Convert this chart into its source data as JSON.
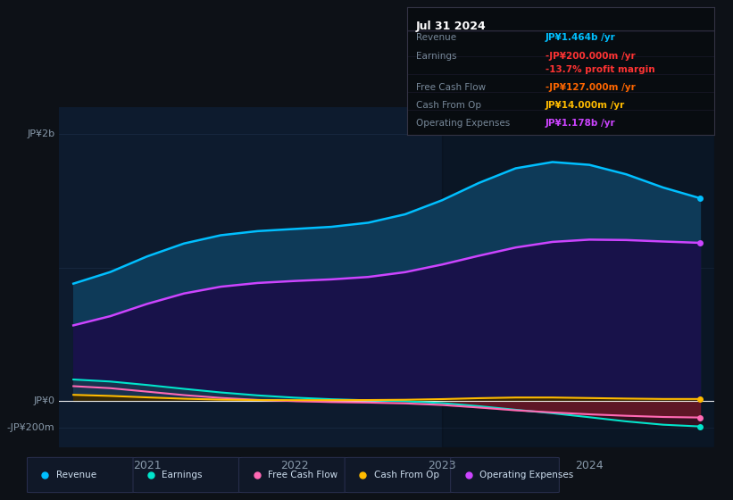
{
  "bg_color": "#0d1117",
  "plot_bg_color": "#0d1b2e",
  "grid_color": "#1a2d45",
  "axis_label_color": "#8899aa",
  "info_box": {
    "title": "Jul 31 2024",
    "title_color": "#ffffff",
    "bg_color": "#080c10",
    "border_color": "#333344",
    "rows": [
      {
        "label": "Revenue",
        "value": "JP¥1.464b /yr",
        "label_color": "#778899",
        "value_color": "#00bfff"
      },
      {
        "label": "Earnings",
        "value": "-JP¥200.000m /yr",
        "label_color": "#778899",
        "value_color": "#ff3333"
      },
      {
        "label": "",
        "value": "-13.7% profit margin",
        "label_color": "",
        "value_color": "#ff3333"
      },
      {
        "label": "Free Cash Flow",
        "value": "-JP¥127.000m /yr",
        "label_color": "#778899",
        "value_color": "#ff6600"
      },
      {
        "label": "Cash From Op",
        "value": "JP¥14.000m /yr",
        "label_color": "#778899",
        "value_color": "#ffbb00"
      },
      {
        "label": "Operating Expenses",
        "value": "JP¥1.178b /yr",
        "label_color": "#778899",
        "value_color": "#cc44ff"
      }
    ]
  },
  "legend": [
    {
      "label": "Revenue",
      "color": "#00bfff"
    },
    {
      "label": "Earnings",
      "color": "#00e5cc"
    },
    {
      "label": "Free Cash Flow",
      "color": "#ff69b4"
    },
    {
      "label": "Cash From Op",
      "color": "#ffbb00"
    },
    {
      "label": "Operating Expenses",
      "color": "#cc44ff"
    }
  ],
  "x_ticks": [
    2021,
    2022,
    2023,
    2024
  ],
  "y_labels": [
    {
      "text": "JP¥2b",
      "value": 2000
    },
    {
      "text": "JP¥0",
      "value": 0
    },
    {
      "text": "-JP¥200m",
      "value": -200
    }
  ],
  "ylim": [
    -350,
    2200
  ],
  "xlim_start": 2020.4,
  "xlim_end": 2024.85,
  "series": {
    "x": [
      2020.5,
      2020.75,
      2021.0,
      2021.25,
      2021.5,
      2021.75,
      2022.0,
      2022.25,
      2022.5,
      2022.75,
      2023.0,
      2023.25,
      2023.5,
      2023.75,
      2024.0,
      2024.25,
      2024.5,
      2024.75
    ],
    "revenue": [
      820,
      960,
      1100,
      1200,
      1260,
      1280,
      1290,
      1300,
      1320,
      1370,
      1490,
      1640,
      1790,
      1830,
      1790,
      1720,
      1600,
      1464
    ],
    "op_expenses": [
      520,
      630,
      740,
      820,
      870,
      890,
      900,
      910,
      920,
      950,
      1020,
      1090,
      1160,
      1210,
      1220,
      1210,
      1195,
      1178
    ],
    "earnings": [
      170,
      150,
      120,
      90,
      60,
      40,
      20,
      10,
      5,
      0,
      -10,
      -40,
      -70,
      -90,
      -120,
      -160,
      -185,
      -200
    ],
    "free_cf": [
      120,
      100,
      70,
      40,
      20,
      5,
      -5,
      -10,
      -15,
      -15,
      -25,
      -50,
      -75,
      -90,
      -100,
      -115,
      -125,
      -127
    ],
    "cash_from_op": [
      50,
      40,
      25,
      15,
      8,
      5,
      5,
      5,
      5,
      8,
      12,
      20,
      30,
      28,
      22,
      16,
      14,
      14
    ]
  },
  "highlight_x_start": 2023.0
}
